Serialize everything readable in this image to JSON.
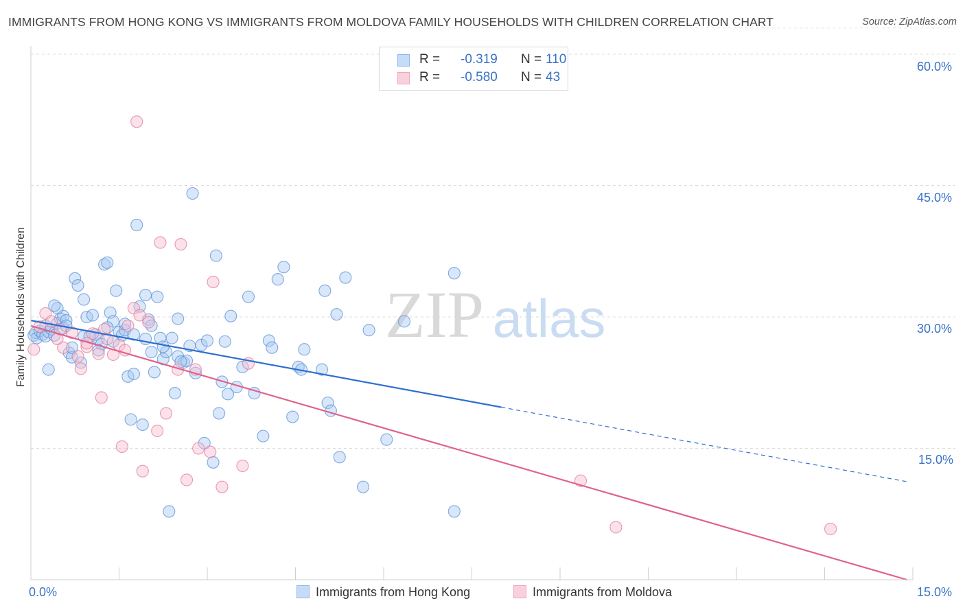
{
  "title": "IMMIGRANTS FROM HONG KONG VS IMMIGRANTS FROM MOLDOVA FAMILY HOUSEHOLDS WITH CHILDREN CORRELATION CHART",
  "source": "Source: ZipAtlas.com",
  "watermark": {
    "zip": "ZIP",
    "atlas": "atlas"
  },
  "legend": {
    "rows": [
      {
        "r_label": "R =",
        "r_value": "-0.319",
        "n_label": "N =",
        "n_value": "110",
        "color": "#8fb8ec"
      },
      {
        "r_label": "R =",
        "r_value": "-0.580",
        "n_label": "N =",
        "n_value": "43",
        "color": "#f2a6bd"
      }
    ]
  },
  "bottom_legend": [
    "Immigrants from Hong Kong",
    "Immigrants from Moldova"
  ],
  "x_tick_labels": {
    "left": "0.0%",
    "right": "15.0%"
  },
  "y_tick_labels": [
    "60.0%",
    "45.0%",
    "30.0%",
    "15.0%"
  ],
  "chart_data": {
    "type": "scatter",
    "xlabel": "",
    "ylabel": "Family Households with Children",
    "xlim": [
      0,
      15
    ],
    "ylim": [
      0,
      60
    ],
    "y_ticks": [
      15,
      30,
      45,
      60
    ],
    "grid": true,
    "legend_position": "top-center",
    "series": [
      {
        "name": "Immigrants from Hong Kong",
        "color": "#8fb8ec",
        "edge": "#5b8fd6",
        "trend": {
          "x0": 0,
          "y0": 29.6,
          "x1": 8.0,
          "y1": 19.7,
          "dashed_to_x": 14.9,
          "dashed_to_y": 11.2,
          "color": "#2f6fcf"
        },
        "points": [
          [
            0.05,
            27.9
          ],
          [
            0.08,
            28.2
          ],
          [
            0.1,
            27.6
          ],
          [
            0.15,
            28.4
          ],
          [
            0.2,
            28.0
          ],
          [
            0.25,
            27.8
          ],
          [
            0.3,
            28.3
          ],
          [
            0.35,
            28.6
          ],
          [
            0.4,
            27.9
          ],
          [
            0.45,
            29.3
          ],
          [
            0.5,
            29.8
          ],
          [
            0.55,
            30.1
          ],
          [
            0.6,
            29.6
          ],
          [
            0.65,
            25.9
          ],
          [
            0.7,
            25.4
          ],
          [
            0.75,
            34.4
          ],
          [
            0.85,
            24.8
          ],
          [
            0.9,
            32.0
          ],
          [
            0.95,
            30.0
          ],
          [
            1.1,
            28.0
          ],
          [
            1.15,
            27.5
          ],
          [
            1.2,
            26.9
          ],
          [
            1.25,
            36.0
          ],
          [
            1.3,
            36.2
          ],
          [
            1.35,
            30.5
          ],
          [
            1.4,
            29.5
          ],
          [
            1.45,
            33.0
          ],
          [
            1.5,
            28.3
          ],
          [
            1.55,
            27.9
          ],
          [
            1.6,
            28.5
          ],
          [
            1.65,
            23.2
          ],
          [
            1.7,
            18.3
          ],
          [
            1.75,
            28.0
          ],
          [
            1.8,
            40.5
          ],
          [
            1.85,
            31.2
          ],
          [
            1.9,
            17.7
          ],
          [
            1.95,
            32.5
          ],
          [
            2.0,
            29.7
          ],
          [
            2.05,
            29.0
          ],
          [
            2.1,
            23.7
          ],
          [
            2.15,
            32.3
          ],
          [
            2.2,
            27.6
          ],
          [
            2.25,
            25.2
          ],
          [
            2.3,
            26.0
          ],
          [
            2.4,
            27.6
          ],
          [
            2.45,
            21.3
          ],
          [
            2.5,
            25.5
          ],
          [
            2.5,
            29.8
          ],
          [
            2.6,
            24.8
          ],
          [
            2.65,
            25.0
          ],
          [
            2.7,
            26.7
          ],
          [
            2.75,
            44.1
          ],
          [
            2.8,
            23.6
          ],
          [
            2.9,
            26.8
          ],
          [
            2.95,
            15.6
          ],
          [
            3.0,
            27.3
          ],
          [
            3.1,
            13.4
          ],
          [
            3.15,
            37.0
          ],
          [
            3.2,
            19.0
          ],
          [
            3.25,
            22.6
          ],
          [
            3.3,
            27.2
          ],
          [
            3.35,
            21.2
          ],
          [
            3.4,
            30.1
          ],
          [
            3.5,
            22.0
          ],
          [
            3.6,
            24.3
          ],
          [
            3.7,
            32.3
          ],
          [
            3.8,
            21.3
          ],
          [
            3.95,
            16.4
          ],
          [
            4.05,
            27.3
          ],
          [
            4.1,
            26.5
          ],
          [
            4.2,
            34.3
          ],
          [
            4.3,
            35.7
          ],
          [
            4.45,
            18.6
          ],
          [
            4.55,
            24.3
          ],
          [
            4.6,
            24.0
          ],
          [
            4.65,
            26.3
          ],
          [
            4.95,
            24.0
          ],
          [
            5.0,
            33.0
          ],
          [
            5.05,
            20.2
          ],
          [
            5.1,
            19.3
          ],
          [
            5.2,
            30.3
          ],
          [
            5.25,
            14.0
          ],
          [
            5.35,
            34.5
          ],
          [
            5.65,
            10.6
          ],
          [
            5.75,
            28.5
          ],
          [
            6.05,
            16.0
          ],
          [
            6.35,
            29.5
          ],
          [
            7.2,
            35.0
          ],
          [
            7.2,
            7.8
          ],
          [
            2.35,
            7.8
          ],
          [
            0.3,
            24.0
          ],
          [
            0.45,
            31.0
          ],
          [
            0.55,
            28.7
          ],
          [
            0.7,
            26.5
          ],
          [
            0.9,
            27.8
          ],
          [
            1.05,
            30.2
          ],
          [
            1.15,
            26.2
          ],
          [
            1.4,
            27.2
          ],
          [
            1.6,
            29.2
          ],
          [
            1.95,
            27.5
          ],
          [
            2.25,
            26.6
          ],
          [
            2.55,
            24.9
          ],
          [
            0.25,
            29.0
          ],
          [
            0.4,
            31.3
          ],
          [
            0.6,
            29.0
          ],
          [
            0.8,
            33.6
          ],
          [
            1.0,
            27.8
          ],
          [
            1.3,
            28.8
          ],
          [
            1.75,
            23.5
          ],
          [
            2.05,
            26.0
          ]
        ]
      },
      {
        "name": "Immigrants from Moldova",
        "color": "#f2a6bd",
        "edge": "#e2789a",
        "trend": {
          "x0": 0,
          "y0": 29.0,
          "x1": 14.9,
          "y1": 0.0,
          "color": "#e0628c"
        },
        "points": [
          [
            0.05,
            26.3
          ],
          [
            0.15,
            28.9
          ],
          [
            0.25,
            30.4
          ],
          [
            0.35,
            29.5
          ],
          [
            0.45,
            27.5
          ],
          [
            0.55,
            26.5
          ],
          [
            0.7,
            28.2
          ],
          [
            0.8,
            25.5
          ],
          [
            0.85,
            24.1
          ],
          [
            0.95,
            26.6
          ],
          [
            1.05,
            28.1
          ],
          [
            1.15,
            25.8
          ],
          [
            1.2,
            20.8
          ],
          [
            1.3,
            27.5
          ],
          [
            1.4,
            25.7
          ],
          [
            1.5,
            26.8
          ],
          [
            1.55,
            15.2
          ],
          [
            1.6,
            26.2
          ],
          [
            1.65,
            29.0
          ],
          [
            1.75,
            31.0
          ],
          [
            1.8,
            52.3
          ],
          [
            1.85,
            30.2
          ],
          [
            1.9,
            12.4
          ],
          [
            2.0,
            29.4
          ],
          [
            2.15,
            17.0
          ],
          [
            2.2,
            38.5
          ],
          [
            2.3,
            19.0
          ],
          [
            2.5,
            24.0
          ],
          [
            2.55,
            38.3
          ],
          [
            2.65,
            11.4
          ],
          [
            2.8,
            24.0
          ],
          [
            2.85,
            15.0
          ],
          [
            3.05,
            14.6
          ],
          [
            3.1,
            34.0
          ],
          [
            3.25,
            10.6
          ],
          [
            3.6,
            13.0
          ],
          [
            3.7,
            24.7
          ],
          [
            0.5,
            28.6
          ],
          [
            0.95,
            27.0
          ],
          [
            1.25,
            28.6
          ],
          [
            9.35,
            11.3
          ],
          [
            9.95,
            6.0
          ],
          [
            13.6,
            5.8
          ]
        ]
      }
    ]
  }
}
